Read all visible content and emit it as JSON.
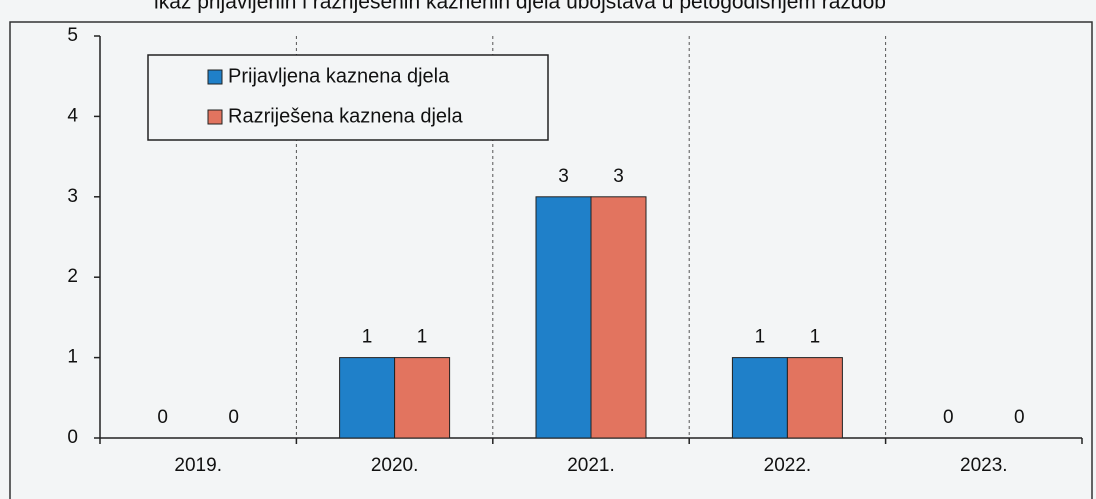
{
  "chart_data": {
    "type": "bar",
    "title": "ikaz prijavljenih i razriješenih kaznenih djela ubojstava u petogodišnjem razdob",
    "categories": [
      "2019.",
      "2020.",
      "2021.",
      "2022.",
      "2023."
    ],
    "series": [
      {
        "name": "Prijavljena kaznena djela",
        "color": "#1f80c9",
        "values": [
          0,
          1,
          3,
          1,
          0
        ]
      },
      {
        "name": "Razriješena kaznena djela",
        "color": "#e2745f",
        "values": [
          0,
          1,
          3,
          1,
          0
        ]
      }
    ],
    "ylim": [
      0,
      5
    ],
    "yticks": [
      0,
      1,
      2,
      3,
      4,
      5
    ],
    "legend": "upper left"
  }
}
